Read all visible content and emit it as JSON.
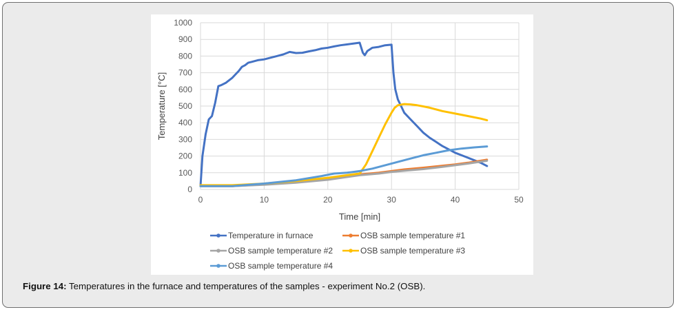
{
  "figure": {
    "caption_label": "Figure 14:",
    "caption_text": " Temperatures in the furnace and temperatures of the samples - experiment No.2 (OSB)."
  },
  "chart_data": {
    "type": "line",
    "title": "",
    "xlabel": "Time [min]",
    "ylabel": "Temperature [°C]",
    "xlim": [
      0,
      50
    ],
    "ylim": [
      0,
      1000
    ],
    "xticks": [
      0,
      10,
      20,
      30,
      40,
      50
    ],
    "yticks": [
      0,
      100,
      200,
      300,
      400,
      500,
      600,
      700,
      800,
      900,
      1000
    ],
    "grid": true,
    "legend_position": "bottom",
    "series": [
      {
        "name": "Temperature in furnace",
        "color": "#4472c4",
        "x": [
          0,
          0.3,
          0.8,
          1.3,
          1.8,
          2.3,
          2.8,
          3.2,
          4,
          5,
          5.5,
          6,
          6.5,
          7,
          7.5,
          8,
          9,
          10,
          11,
          12,
          13,
          14,
          15,
          16,
          17,
          18,
          19,
          20,
          21,
          22,
          23,
          24,
          25,
          25.5,
          25.8,
          26.2,
          27,
          28,
          29,
          30,
          30.3,
          30.6,
          31,
          31.5,
          32,
          33,
          34,
          35,
          36,
          37,
          38,
          39,
          40,
          41,
          42,
          43,
          44,
          45
        ],
        "y": [
          20,
          200,
          330,
          420,
          440,
          520,
          620,
          625,
          640,
          670,
          690,
          710,
          735,
          745,
          760,
          765,
          775,
          780,
          790,
          800,
          810,
          825,
          818,
          820,
          828,
          835,
          845,
          850,
          858,
          865,
          870,
          875,
          880,
          820,
          805,
          830,
          850,
          855,
          865,
          868,
          700,
          600,
          540,
          500,
          460,
          420,
          380,
          340,
          310,
          285,
          260,
          240,
          220,
          205,
          190,
          175,
          160,
          140
        ]
      },
      {
        "name": "OSB sample temperature #1",
        "color": "#ed7d31",
        "x": [
          0,
          5,
          10,
          15,
          20,
          25,
          28,
          30,
          32,
          35,
          38,
          40,
          42,
          45
        ],
        "y": [
          20,
          20,
          30,
          45,
          65,
          90,
          100,
          110,
          120,
          130,
          142,
          150,
          160,
          178
        ]
      },
      {
        "name": "OSB sample temperature #2",
        "color": "#a5a5a5",
        "x": [
          0,
          5,
          10,
          15,
          20,
          25,
          28,
          30,
          32,
          35,
          38,
          40,
          42,
          45
        ],
        "y": [
          20,
          20,
          28,
          40,
          58,
          85,
          95,
          105,
          112,
          122,
          135,
          145,
          155,
          172
        ]
      },
      {
        "name": "OSB sample temperature #3",
        "color": "#ffc000",
        "x": [
          0,
          5,
          10,
          15,
          20,
          23,
          25,
          26,
          27,
          28,
          29,
          30,
          30.5,
          31,
          32,
          33,
          34,
          35,
          36,
          38,
          40,
          42,
          44,
          45
        ],
        "y": [
          25,
          25,
          35,
          50,
          70,
          85,
          95,
          150,
          230,
          310,
          390,
          460,
          490,
          505,
          512,
          510,
          505,
          498,
          490,
          470,
          455,
          440,
          425,
          415
        ]
      },
      {
        "name": "OSB sample temperature #4",
        "color": "#5b9bd5",
        "x": [
          0,
          5,
          10,
          15,
          19,
          21,
          23,
          25,
          27,
          29,
          31,
          33,
          35,
          37,
          39,
          41,
          43,
          45
        ],
        "y": [
          20,
          20,
          35,
          55,
          80,
          95,
          100,
          110,
          125,
          145,
          165,
          185,
          205,
          220,
          235,
          245,
          252,
          258
        ]
      }
    ]
  }
}
